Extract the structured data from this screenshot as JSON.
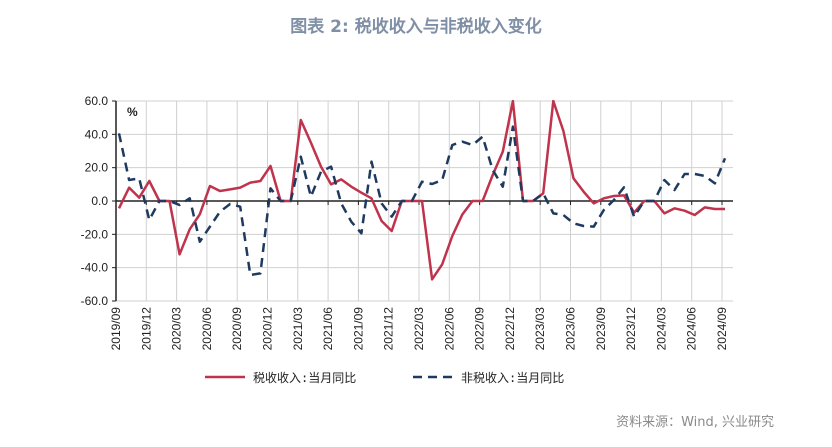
{
  "title": "图表 2:  税收收入与非税收入变化",
  "source": "资料来源：Wind, 兴业研究",
  "chart_data": {
    "type": "line",
    "unit_label": "%",
    "ylim": [
      -60,
      60
    ],
    "yticks": [
      "60.0",
      "40.0",
      "20.0",
      "0.0",
      "-20.0",
      "-40.0",
      "-60.0"
    ],
    "ytick_values": [
      60,
      40,
      20,
      0,
      -20,
      -40,
      -60
    ],
    "grid": true,
    "legend_position": "bottom",
    "categories": [
      "2019/09",
      "2019/10",
      "2019/11",
      "2019/12",
      "2020/01",
      "2020/02",
      "2020/03",
      "2020/04",
      "2020/05",
      "2020/06",
      "2020/07",
      "2020/08",
      "2020/09",
      "2020/10",
      "2020/11",
      "2020/12",
      "2021/01",
      "2021/02",
      "2021/03",
      "2021/04",
      "2021/05",
      "2021/06",
      "2021/07",
      "2021/08",
      "2021/09",
      "2021/10",
      "2021/11",
      "2021/12",
      "2022/01",
      "2022/02",
      "2022/03",
      "2022/04",
      "2022/05",
      "2022/06",
      "2022/07",
      "2022/08",
      "2022/09",
      "2022/10",
      "2022/11",
      "2022/12",
      "2023/01",
      "2023/02",
      "2023/03",
      "2023/04",
      "2023/05",
      "2023/06",
      "2023/07",
      "2023/08",
      "2023/09",
      "2023/10",
      "2023/11",
      "2023/12",
      "2024/01",
      "2024/02",
      "2024/03",
      "2024/04",
      "2024/05",
      "2024/06",
      "2024/07",
      "2024/08",
      "2024/09"
    ],
    "xtick_labels": [
      "2019/09",
      "2019/12",
      "2020/03",
      "2020/06",
      "2020/09",
      "2020/12",
      "2021/03",
      "2021/06",
      "2021/09",
      "2021/12",
      "2022/03",
      "2022/06",
      "2022/09",
      "2022/12",
      "2023/03",
      "2023/06",
      "2023/09",
      "2023/12",
      "2024/03",
      "2024/06",
      "2024/09"
    ],
    "series": [
      {
        "name": "税收收入:当月同比",
        "color": "#c0334d",
        "dash": false,
        "values": [
          -4.4,
          8,
          2,
          12,
          0,
          0,
          -32,
          -17,
          -8,
          9,
          6,
          7,
          8,
          11,
          12,
          21,
          0,
          0,
          48.6,
          35,
          20.6,
          10,
          13,
          8.6,
          5,
          1.6,
          -12,
          -18,
          0,
          0,
          0,
          -47,
          -38,
          -21,
          -8,
          0,
          0,
          15.6,
          29.6,
          65,
          0,
          0,
          4.6,
          70,
          42,
          13.6,
          5.6,
          -1.4,
          1.6,
          3,
          3.4,
          -7,
          0,
          0,
          -7.4,
          -4.4,
          -5.8,
          -8.4,
          -3.8,
          -4.8,
          -4.8
        ]
      },
      {
        "name": "非税收入:当月同比",
        "color": "#1f3a5f",
        "dash": true,
        "values": [
          40.6,
          12.6,
          13.6,
          -11.4,
          0,
          0,
          -2.4,
          1.6,
          -24.4,
          -15.4,
          -6.4,
          -1.8,
          -3.4,
          -44.4,
          -43.4,
          7.6,
          0,
          0,
          26.6,
          2.6,
          17.6,
          20.6,
          -1.4,
          -12.4,
          -19.4,
          23.6,
          -1.4,
          -9.4,
          0,
          0,
          11.6,
          10.2,
          12.6,
          33.6,
          35.6,
          33.6,
          38.6,
          18.6,
          8.6,
          44.6,
          0,
          0,
          4.6,
          -7.4,
          -8.4,
          -13.4,
          -15,
          -15.4,
          -5.4,
          0.6,
          8.2,
          -9.4,
          0,
          0,
          12.6,
          6.6,
          16.2,
          16.2,
          15,
          10.6,
          25.6
        ]
      }
    ]
  }
}
